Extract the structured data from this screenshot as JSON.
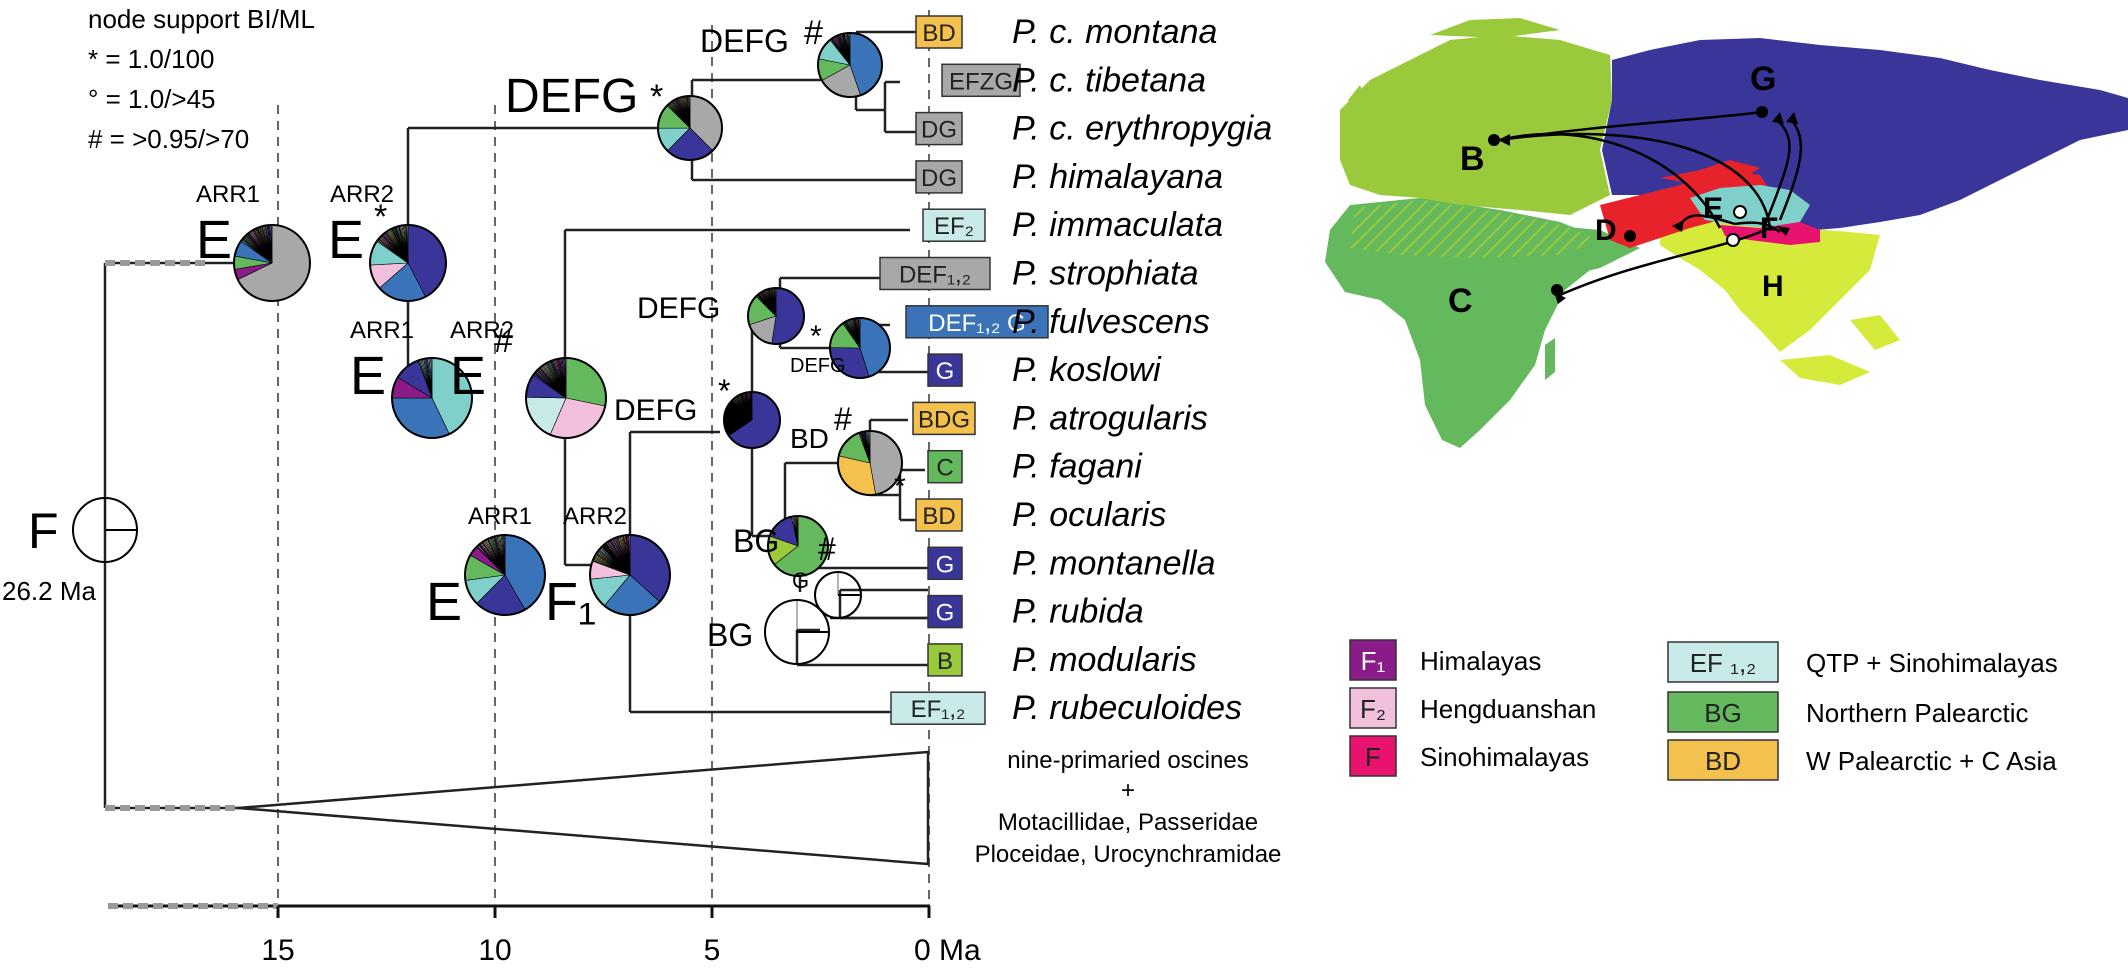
{
  "support_legend": {
    "title": "node support BI/ML",
    "items": [
      "* = 1.0/100",
      "° = 1.0/>45",
      "# = >0.95/>70"
    ]
  },
  "axis": {
    "ticks": [
      15,
      10,
      5,
      0
    ],
    "unit": "Ma",
    "tick_labels": [
      "15",
      "10",
      "5",
      "0 Ma"
    ]
  },
  "root": {
    "label": "F",
    "age": "26.2 Ma"
  },
  "taxa": [
    {
      "name": "P. c. montana",
      "range": "BD",
      "color": "#f4c04e"
    },
    {
      "name": "P. c. tibetana",
      "range": "EFZG",
      "color": "#a8a8a8"
    },
    {
      "name": "P. c. erythropygia",
      "range": "DG",
      "color": "#a8a8a8"
    },
    {
      "name": "P. himalayana",
      "range": "DG",
      "color": "#a8a8a8"
    },
    {
      "name": "P. immaculata",
      "range": "EF₂",
      "color": "#c8ebe9"
    },
    {
      "name": "P. strophiata",
      "range": "DEF₁,₂",
      "color": "#a8a8a8"
    },
    {
      "name": "P. fulvescens",
      "range": "DEF₁,₂ G",
      "color": "#3a73b8"
    },
    {
      "name": "P. koslowi",
      "range": "G",
      "color": "#3a3599"
    },
    {
      "name": "P. atrogularis",
      "range": "BDG",
      "color": "#f4c04e"
    },
    {
      "name": "P. fagani",
      "range": "C",
      "color": "#63b95c"
    },
    {
      "name": "P. ocularis",
      "range": "BD",
      "color": "#f4c04e"
    },
    {
      "name": "P. montanella",
      "range": "G",
      "color": "#3a3599"
    },
    {
      "name": "P. rubida",
      "range": "G",
      "color": "#3a3599"
    },
    {
      "name": "P. modularis",
      "range": "B",
      "color": "#9bc93c"
    },
    {
      "name": "P. rubeculoides",
      "range": "EF₁,₂",
      "color": "#c8ebe9"
    }
  ],
  "outgroup": [
    "nine-primaried oscines",
    "+",
    "Motacillidae, Passeridae",
    "Ploceidae, Urocynchramidae"
  ],
  "node_labels": [
    {
      "id": "n1",
      "text": "DEFG",
      "sup": "#"
    },
    {
      "id": "n2",
      "text": "DEFG",
      "sup": "*"
    },
    {
      "id": "n3",
      "text": "E",
      "sup": "*",
      "arr1": "ARR1",
      "arr2": "ARR2"
    },
    {
      "id": "n3a",
      "text": "E"
    },
    {
      "id": "n4",
      "text": "E",
      "sup": "#",
      "arr1": "ARR1",
      "arr2": "ARR2"
    },
    {
      "id": "n4a",
      "text": "E"
    },
    {
      "id": "n5",
      "text": "E",
      "arr1": "ARR1",
      "arr2": "ARR2"
    },
    {
      "id": "n5a",
      "text": "F₁"
    },
    {
      "id": "n6",
      "text": "DEFG",
      "sup": "*"
    },
    {
      "id": "n7",
      "text": "DEFG"
    },
    {
      "id": "n8",
      "text": "DEFG",
      "sup": "*"
    },
    {
      "id": "n9",
      "text": "BD",
      "sup": "#"
    },
    {
      "id": "n10",
      "text": "BG"
    },
    {
      "id": "n11",
      "text": "G",
      "sup": "#"
    },
    {
      "id": "n12",
      "text": "BG"
    },
    {
      "id": "n13",
      "sup": "*"
    }
  ],
  "area_legend": [
    {
      "code": "F₁",
      "label": "Himalayas",
      "color": "#8b1b89",
      "text_color": "#ffffff"
    },
    {
      "code": "F₂",
      "label": "Hengduanshan",
      "color": "#f2bfdc",
      "text_color": "#222222"
    },
    {
      "code": "F",
      "label": "Sinohimalayas",
      "color": "#e8136f",
      "text_color": "#222222"
    },
    {
      "code": "EF ₁,₂",
      "label": "QTP + Sinohimalayas",
      "color": "#c8ebe9",
      "text_color": "#222222"
    },
    {
      "code": "BG",
      "label": "Northern Palearctic",
      "color": "#63b95c",
      "text_color": "#222222"
    },
    {
      "code": "BD",
      "label": "W Palearctic + C Asia",
      "color": "#f4c04e",
      "text_color": "#222222"
    }
  ],
  "map": {
    "region_labels": [
      "G",
      "B",
      "E",
      "D",
      "F",
      "C",
      "H"
    ],
    "colors": {
      "G": "#3a3599",
      "B": "#9bc93c",
      "C": "#63b95c",
      "D": "#e8222a",
      "E": "#7fcfcb",
      "F": "#e8136f",
      "H": "#d6ea3c"
    }
  }
}
